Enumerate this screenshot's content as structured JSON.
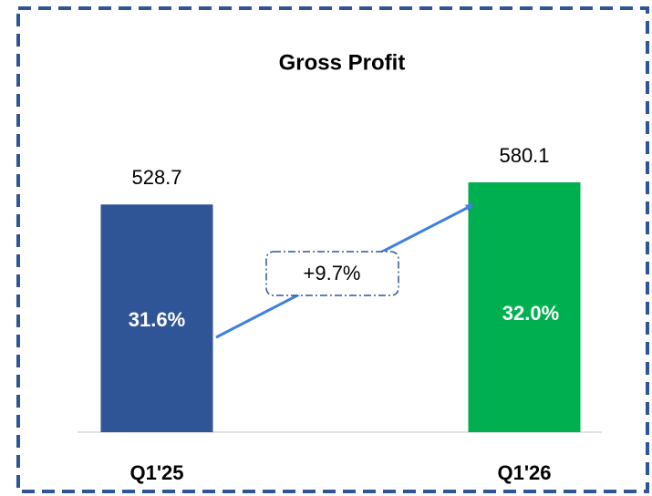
{
  "chart_data": {
    "type": "bar",
    "title": "Gross Profit",
    "categories": [
      "Q1'25",
      "Q1'26"
    ],
    "values": [
      528.7,
      580.1
    ],
    "colors": [
      "#2F5597",
      "#00B050"
    ],
    "inner_labels": [
      "31.6%",
      "32.0%"
    ],
    "annotation": "+9.7%"
  }
}
